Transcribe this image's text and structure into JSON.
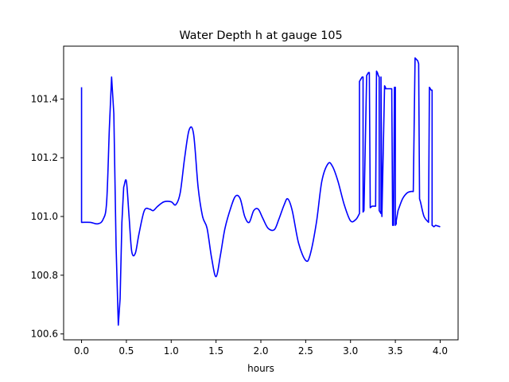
{
  "chart_data": {
    "type": "line",
    "title": "Water Depth h at gauge 105",
    "xlabel": "hours",
    "ylabel": "",
    "xlim": [
      -0.2,
      4.2
    ],
    "ylim": [
      100.58,
      101.58
    ],
    "x_ticks": [
      0.0,
      0.5,
      1.0,
      1.5,
      2.0,
      2.5,
      3.0,
      3.5,
      4.0
    ],
    "x_tick_labels": [
      "0.0",
      "0.5",
      "1.0",
      "1.5",
      "2.0",
      "2.5",
      "3.0",
      "3.5",
      "4.0"
    ],
    "y_ticks": [
      100.6,
      100.8,
      101.0,
      101.2,
      101.4
    ],
    "y_tick_labels": [
      "100.6",
      "100.8",
      "101.0",
      "101.2",
      "101.4"
    ],
    "grid": false,
    "legend": "none",
    "series": [
      {
        "color": "#0000ff",
        "x": [
          0.0,
          0.0,
          0.1,
          0.18,
          0.24,
          0.28,
          0.31,
          0.335,
          0.36,
          0.385,
          0.41,
          0.43,
          0.45,
          0.47,
          0.5,
          0.53,
          0.56,
          0.6,
          0.64,
          0.7,
          0.76,
          0.8,
          0.85,
          0.92,
          1.0,
          1.05,
          1.1,
          1.15,
          1.2,
          1.25,
          1.3,
          1.35,
          1.4,
          1.45,
          1.5,
          1.55,
          1.6,
          1.67,
          1.72,
          1.77,
          1.82,
          1.87,
          1.92,
          1.97,
          2.02,
          2.08,
          2.15,
          2.2,
          2.26,
          2.3,
          2.35,
          2.42,
          2.5,
          2.55,
          2.62,
          2.68,
          2.75,
          2.8,
          2.86,
          2.93,
          3.0,
          3.06,
          3.1,
          3.1,
          3.12,
          3.13,
          3.14,
          3.14,
          3.15,
          3.18,
          3.2,
          3.21,
          3.22,
          3.24,
          3.28,
          3.29,
          3.3,
          3.31,
          3.32,
          3.32,
          3.34,
          3.34,
          3.35,
          3.38,
          3.39,
          3.39,
          3.42,
          3.46,
          3.47,
          3.48,
          3.49,
          3.5,
          3.5,
          3.51,
          3.51,
          3.53,
          3.58,
          3.63,
          3.67,
          3.7,
          3.72,
          3.72,
          3.75,
          3.76,
          3.77,
          3.78,
          3.82,
          3.87,
          3.88,
          3.88,
          3.9,
          3.91,
          3.91,
          3.93,
          3.95,
          4.0
        ],
        "y": [
          101.44,
          100.98,
          100.98,
          100.975,
          100.99,
          101.05,
          101.3,
          101.475,
          101.35,
          100.9,
          100.63,
          100.72,
          100.98,
          101.1,
          101.12,
          101.0,
          100.88,
          100.875,
          100.94,
          101.02,
          101.025,
          101.02,
          101.035,
          101.05,
          101.05,
          101.04,
          101.08,
          101.2,
          101.295,
          101.28,
          101.1,
          101.0,
          100.96,
          100.86,
          100.795,
          100.87,
          100.96,
          101.035,
          101.07,
          101.06,
          101.0,
          100.98,
          101.02,
          101.025,
          100.995,
          100.96,
          100.955,
          100.99,
          101.04,
          101.06,
          101.02,
          100.91,
          100.85,
          100.87,
          100.98,
          101.12,
          101.18,
          101.17,
          101.12,
          101.04,
          100.985,
          100.99,
          101.01,
          101.46,
          101.47,
          101.475,
          101.475,
          101.015,
          101.02,
          101.48,
          101.49,
          101.49,
          101.03,
          101.035,
          101.035,
          101.495,
          101.49,
          101.48,
          101.475,
          101.02,
          101.01,
          101.475,
          101.0,
          101.445,
          101.44,
          101.435,
          101.435,
          101.435,
          100.97,
          100.97,
          101.44,
          101.44,
          100.97,
          100.975,
          100.985,
          101.02,
          101.06,
          101.08,
          101.085,
          101.085,
          101.54,
          101.54,
          101.53,
          101.52,
          101.06,
          101.05,
          101.0,
          100.98,
          101.44,
          101.44,
          101.43,
          101.43,
          100.97,
          100.965,
          100.97,
          100.965
        ]
      }
    ]
  }
}
